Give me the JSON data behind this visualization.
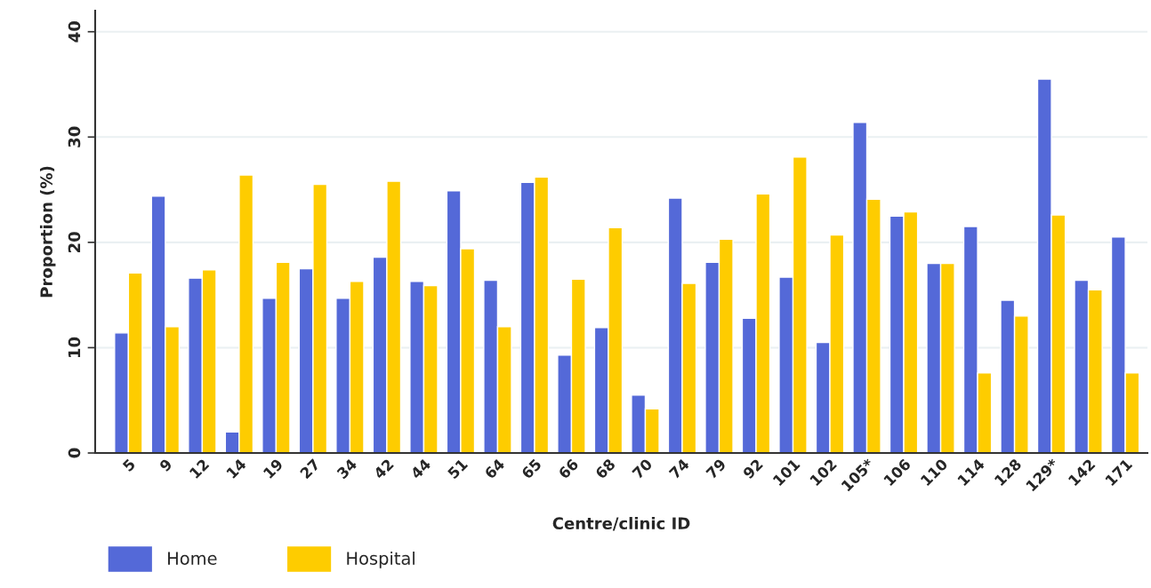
{
  "chart_data": {
    "type": "bar",
    "categories": [
      "5",
      "9",
      "12",
      "14",
      "19",
      "27",
      "34",
      "42",
      "44",
      "51",
      "64",
      "65",
      "66",
      "68",
      "70",
      "74",
      "79",
      "92",
      "101",
      "102",
      "105*",
      "106",
      "110",
      "114",
      "128",
      "129*",
      "142",
      "171"
    ],
    "series": [
      {
        "name": "Home",
        "color": "#5469d8",
        "values": [
          11.4,
          24.4,
          16.6,
          2.0,
          14.7,
          17.5,
          14.7,
          18.6,
          16.3,
          24.9,
          16.4,
          25.7,
          9.3,
          11.9,
          5.5,
          24.2,
          18.1,
          12.8,
          16.7,
          10.5,
          31.4,
          22.5,
          18.0,
          21.5,
          14.5,
          35.5,
          16.4,
          20.5
        ]
      },
      {
        "name": "Hospital",
        "color": "#fecc00",
        "values": [
          17.1,
          12.0,
          17.4,
          26.4,
          18.1,
          25.5,
          16.3,
          25.8,
          15.9,
          19.4,
          12.0,
          26.2,
          16.5,
          21.4,
          4.2,
          16.1,
          20.3,
          24.6,
          28.1,
          20.7,
          24.1,
          22.9,
          18.0,
          7.6,
          13.0,
          22.6,
          15.5,
          7.6
        ]
      }
    ],
    "xlabel": "Centre/clinic ID",
    "ylabel": "Proportion (%)",
    "ylim": [
      0,
      42
    ],
    "yticks": [
      0,
      10,
      20,
      30,
      40
    ],
    "grid": "y",
    "legend": "bottom left"
  }
}
